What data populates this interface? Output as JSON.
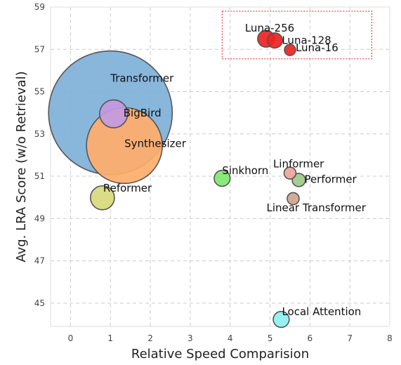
{
  "chart_data": {
    "type": "scatter",
    "title": "",
    "xlabel": "Relative Speed Comparision",
    "ylabel": "Avg. LRA Score (w/o Retrieval)",
    "xlim": [
      -0.5,
      8
    ],
    "ylim": [
      43.9,
      59
    ],
    "x_ticks": [
      0,
      1,
      2,
      3,
      4,
      5,
      6,
      7,
      8
    ],
    "y_ticks": [
      45,
      47,
      49,
      51,
      53,
      55,
      57,
      59
    ],
    "grid": true,
    "points": [
      {
        "label": "Transformer",
        "x": 1.0,
        "y": 54.0,
        "size": 3.1,
        "color": "#7fb0d8"
      },
      {
        "label": "Synthesizer",
        "x": 1.35,
        "y": 52.45,
        "size": 1.9,
        "color": "#ffae6b"
      },
      {
        "label": "BigBird",
        "x": 1.08,
        "y": 53.95,
        "size": 0.7,
        "color": "#c29adf"
      },
      {
        "label": "Reformer",
        "x": 0.8,
        "y": 49.98,
        "size": 0.6,
        "color": "#d7d97c"
      },
      {
        "label": "Sinkhorn",
        "x": 3.8,
        "y": 50.9,
        "size": 0.4,
        "color": "#7ee86e"
      },
      {
        "label": "Linformer",
        "x": 5.5,
        "y": 51.15,
        "size": 0.3,
        "color": "#e8a59c"
      },
      {
        "label": "Performer",
        "x": 5.72,
        "y": 50.82,
        "size": 0.33,
        "color": "#9ccb8a"
      },
      {
        "label": "Linear Transformer",
        "x": 5.58,
        "y": 49.94,
        "size": 0.3,
        "color": "#cfa58f"
      },
      {
        "label": "Local Attention",
        "x": 5.28,
        "y": 44.23,
        "size": 0.4,
        "color": "#8ef0ef"
      },
      {
        "label": "Luna-256",
        "x": 4.9,
        "y": 57.5,
        "size": 0.42,
        "color": "#ee2222"
      },
      {
        "label": "Luna-128",
        "x": 5.12,
        "y": 57.42,
        "size": 0.38,
        "color": "#ee2222"
      },
      {
        "label": "Luna-16",
        "x": 5.5,
        "y": 56.97,
        "size": 0.28,
        "color": "#ee2222"
      }
    ],
    "highlight_box": {
      "x0": 3.8,
      "x1": 7.55,
      "y0": 56.55,
      "y1": 58.8,
      "color": "#dd2222"
    }
  }
}
